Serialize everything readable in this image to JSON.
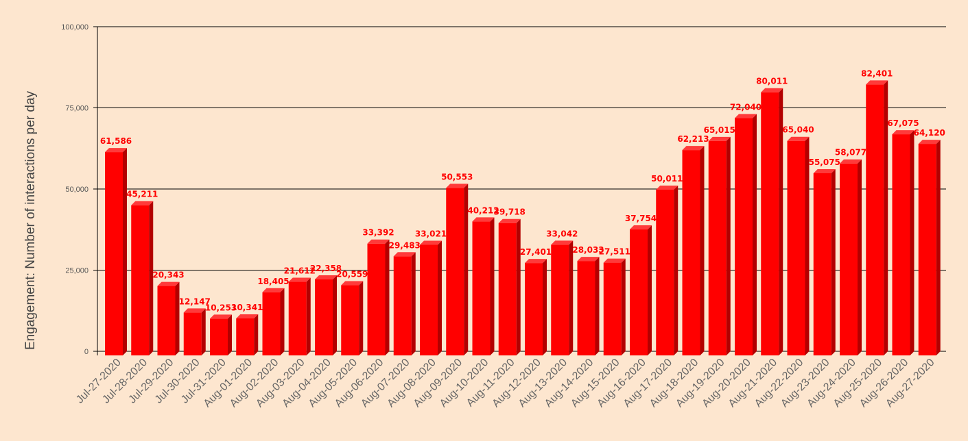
{
  "chart_data": {
    "type": "bar",
    "title": "",
    "xlabel": "",
    "ylabel": "Engagement: Number of interactions per day",
    "ylim": [
      0,
      100000
    ],
    "yticks": [
      0,
      25000,
      50000,
      75000,
      100000
    ],
    "ytick_labels": [
      "0",
      "25,000",
      "50,000",
      "75,000",
      "100,000"
    ],
    "grid": true,
    "style": "3d-bars",
    "categories": [
      "Jul-27-2020",
      "Jul-28-2020",
      "Jul-29-2020",
      "Jul-30-2020",
      "Jul-31-2020",
      "Aug-01-2020",
      "Aug-02-2020",
      "Aug-03-2020",
      "Aug-04-2020",
      "Aug-05-2020",
      "Aug-06-2020",
      "Aug-07-2020",
      "Aug-08-2020",
      "Aug-09-2020",
      "Aug-10-2020",
      "Aug-11-2020",
      "Aug-12-2020",
      "Aug-13-2020",
      "Aug-14-2020",
      "Aug-15-2020",
      "Aug-16-2020",
      "Aug-17-2020",
      "Aug-18-2020",
      "Aug-19-2020",
      "Aug-20-2020",
      "Aug-21-2020",
      "Aug-22-2020",
      "Aug-23-2020",
      "Aug-24-2020",
      "Aug-25-2020",
      "Aug-26-2020",
      "Aug-27-2020"
    ],
    "values": [
      61586,
      45211,
      20343,
      12147,
      10253,
      10341,
      18405,
      21612,
      22358,
      20559,
      33392,
      29483,
      33021,
      50553,
      40212,
      39718,
      27401,
      33042,
      28033,
      27511,
      37754,
      50011,
      62213,
      65015,
      72040,
      80011,
      65040,
      55075,
      58077,
      82401,
      67075,
      64120
    ],
    "value_labels": [
      "61,586",
      "45,211",
      "20,343",
      "12,147",
      "10,253",
      "10,341",
      "18,405",
      "21,612",
      "22,358",
      "20,559",
      "33,392",
      "29,483",
      "33,021",
      "50,553",
      "40,212",
      "39,718",
      "27,401",
      "33,042",
      "28,033",
      "27,511",
      "37,754",
      "50,011",
      "62,213",
      "65,015",
      "72,040",
      "80,011",
      "65,040",
      "55,075",
      "58,077",
      "82,401",
      "67,075",
      "64,120"
    ],
    "colors": {
      "bar_front": "#ff0000",
      "bar_side": "#b30000",
      "bar_top": "#ff3a3a",
      "data_label": "#ff0000",
      "gridline": "#000000",
      "background": "#fde6cf"
    }
  }
}
